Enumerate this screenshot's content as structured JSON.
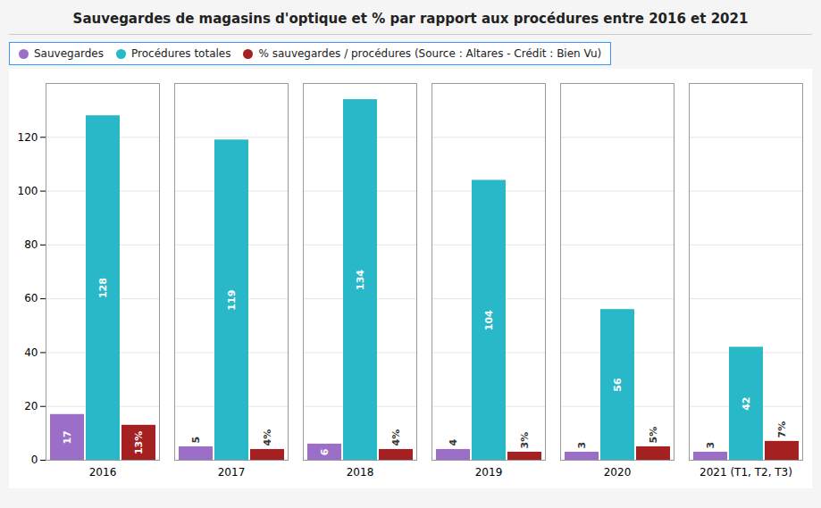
{
  "chart_data": {
    "type": "bar",
    "title": "Sauvegardes de magasins d'optique et % par rapport aux procédures entre 2016 et 2021",
    "categories": [
      "2016",
      "2017",
      "2018",
      "2019",
      "2020",
      "2021 (T1, T2, T3)"
    ],
    "series": [
      {
        "name": "Sauvegardes",
        "color": "#9B6FC8",
        "values": [
          17,
          5,
          6,
          4,
          3,
          3
        ]
      },
      {
        "name": "Procédures totales",
        "color": "#29B8C8",
        "values": [
          128,
          119,
          134,
          104,
          56,
          42
        ]
      },
      {
        "name": "% sauvegardes / procédures (Source : Altares - Crédit : Bien Vu)",
        "color": "#A52020",
        "values": [
          13,
          4,
          4,
          3,
          5,
          7
        ],
        "value_labels": [
          "13%",
          "4%",
          "4%",
          "3%",
          "5%",
          "7%"
        ]
      }
    ],
    "ylim": [
      0,
      140
    ],
    "yticks": [
      0,
      20,
      40,
      60,
      80,
      100,
      120
    ],
    "grid": true,
    "legend": "upper left",
    "data_labels": true
  }
}
